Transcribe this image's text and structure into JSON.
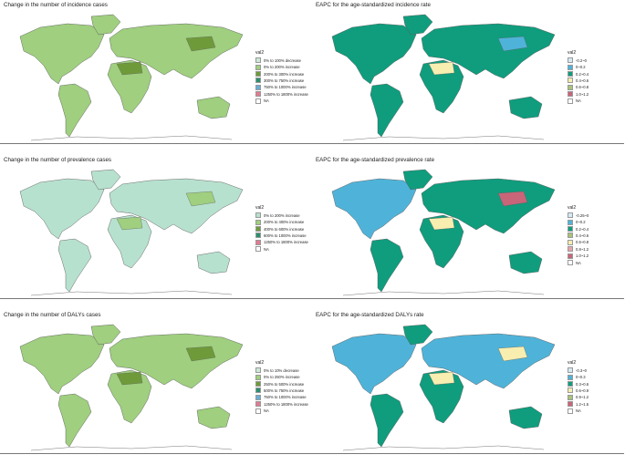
{
  "panels": [
    {
      "id": "p1",
      "title": "Change in the number of incidence cases",
      "legend_title": "val2",
      "legend": [
        {
          "label": "0% to 100% decrease",
          "color": "#cde9d7"
        },
        {
          "label": "0% to 200% increase",
          "color": "#9fcf7f"
        },
        {
          "label": "200% to 300% increase",
          "color": "#6f9a3a"
        },
        {
          "label": "300% to 750% increase",
          "color": "#2a8f6e"
        },
        {
          "label": "750% to 1000% increase",
          "color": "#6aaed6"
        },
        {
          "label": "1250% to 1800% increase",
          "color": "#e07b91"
        },
        {
          "label": "NA",
          "color": "#ffffff"
        }
      ],
      "colors": {
        "na": "#9fcf7f",
        "greenland": "#9fcf7f",
        "sa": "#9fcf7f",
        "africa": "#9fcf7f",
        "eurasia": "#9fcf7f",
        "australia": "#9fcf7f",
        "hl1": "#6f9a3a",
        "hl2": "#6f9a3a"
      }
    },
    {
      "id": "p2",
      "title": "EAPC for the age-standardized incidence rate",
      "legend_title": "val2",
      "legend": [
        {
          "label": "-0.2~0",
          "color": "#d6eaf5"
        },
        {
          "label": "0~0.2",
          "color": "#4fb3d9"
        },
        {
          "label": "0.2~0.4",
          "color": "#0f9d7e"
        },
        {
          "label": "0.4~0.6",
          "color": "#f7eeb0"
        },
        {
          "label": "0.6~0.8",
          "color": "#a7c47a"
        },
        {
          "label": "1.0~1.2",
          "color": "#c86579"
        },
        {
          "label": "NA",
          "color": "#ffffff"
        }
      ],
      "colors": {
        "na": "#0f9d7e",
        "greenland": "#0f9d7e",
        "sa": "#0f9d7e",
        "africa": "#0f9d7e",
        "eurasia": "#0f9d7e",
        "australia": "#0f9d7e",
        "hl1": "#f7eeb0",
        "hl2": "#4fb3d9"
      }
    },
    {
      "id": "p3",
      "title": "Change in the number of prevalence cases",
      "legend_title": "val2",
      "legend": [
        {
          "label": "0% to 200% increase",
          "color": "#b7e1cf"
        },
        {
          "label": "200% to 400% increase",
          "color": "#9fcf7f"
        },
        {
          "label": "400% to 600% increase",
          "color": "#6f9a3a"
        },
        {
          "label": "600% to 1000% increase",
          "color": "#2a8f6e"
        },
        {
          "label": "1250% to 1800% increase",
          "color": "#e07b91"
        },
        {
          "label": "NA",
          "color": "#ffffff"
        }
      ],
      "colors": {
        "na": "#b7e1cf",
        "greenland": "#b7e1cf",
        "sa": "#b7e1cf",
        "africa": "#b7e1cf",
        "eurasia": "#b7e1cf",
        "australia": "#b7e1cf",
        "hl1": "#9fcf7f",
        "hl2": "#9fcf7f"
      }
    },
    {
      "id": "p4",
      "title": "EAPC for the age-standardized prevalence rate",
      "legend_title": "val2",
      "legend": [
        {
          "label": "-0.25~0",
          "color": "#d6eaf5"
        },
        {
          "label": "0~0.2",
          "color": "#4fb3d9"
        },
        {
          "label": "0.2~0.4",
          "color": "#0f9d7e"
        },
        {
          "label": "0.4~0.6",
          "color": "#a7c47a"
        },
        {
          "label": "0.6~0.8",
          "color": "#f7eeb0"
        },
        {
          "label": "0.8~1.2",
          "color": "#e8a3a8"
        },
        {
          "label": "1.0~1.2",
          "color": "#c86579"
        },
        {
          "label": "NA",
          "color": "#ffffff"
        }
      ],
      "colors": {
        "na": "#4fb3d9",
        "greenland": "#0f9d7e",
        "sa": "#0f9d7e",
        "africa": "#0f9d7e",
        "eurasia": "#0f9d7e",
        "australia": "#0f9d7e",
        "hl1": "#f7eeb0",
        "hl2": "#c86579"
      }
    },
    {
      "id": "p5",
      "title": "Change in the number of DALYs cases",
      "legend_title": "val2",
      "legend": [
        {
          "label": "0% to 10% decrease",
          "color": "#cde9d7"
        },
        {
          "label": "0% to 250% increase",
          "color": "#9fcf7f"
        },
        {
          "label": "250% to 500% increase",
          "color": "#6f9a3a"
        },
        {
          "label": "500% to 750% increase",
          "color": "#2a8f6e"
        },
        {
          "label": "750% to 1000% increase",
          "color": "#6aaed6"
        },
        {
          "label": "1250% to 1800% increase",
          "color": "#e07b91"
        },
        {
          "label": "NA",
          "color": "#ffffff"
        }
      ],
      "colors": {
        "na": "#9fcf7f",
        "greenland": "#9fcf7f",
        "sa": "#9fcf7f",
        "africa": "#9fcf7f",
        "eurasia": "#9fcf7f",
        "australia": "#9fcf7f",
        "hl1": "#6f9a3a",
        "hl2": "#6f9a3a"
      }
    },
    {
      "id": "p6",
      "title": "EAPC for the age-standardized DALYs rate",
      "legend_title": "val2",
      "legend": [
        {
          "label": "-0.3~0",
          "color": "#d6eaf5"
        },
        {
          "label": "0~0.3",
          "color": "#4fb3d9"
        },
        {
          "label": "0.3~0.6",
          "color": "#0f9d7e"
        },
        {
          "label": "0.6~0.9",
          "color": "#f7eeb0"
        },
        {
          "label": "0.9~1.2",
          "color": "#a7c47a"
        },
        {
          "label": "1.2~1.5",
          "color": "#c86579"
        },
        {
          "label": "NA",
          "color": "#ffffff"
        }
      ],
      "colors": {
        "na": "#4fb3d9",
        "greenland": "#0f9d7e",
        "sa": "#0f9d7e",
        "africa": "#0f9d7e",
        "eurasia": "#4fb3d9",
        "australia": "#0f9d7e",
        "hl1": "#f7eeb0",
        "hl2": "#f7eeb0"
      }
    }
  ]
}
